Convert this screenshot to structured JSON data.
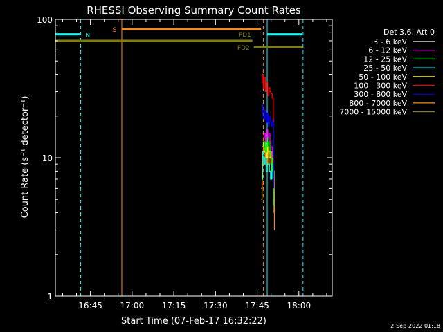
{
  "chart_data": {
    "type": "line",
    "title": "RHESSI Observing Summary Count Rates",
    "xlabel": "Start Time (07-Feb-17 16:32:22)",
    "ylabel": "Count Rate (s⁻¹ detector⁻¹)",
    "yscale": "log",
    "ylim": [
      1,
      100
    ],
    "xlim_minutes_of_day": [
      992.4,
      1092.0
    ],
    "x_ticks": [
      {
        "label": "16:45",
        "minute": 1005
      },
      {
        "label": "17:00",
        "minute": 1020
      },
      {
        "label": "17:15",
        "minute": 1035
      },
      {
        "label": "17:30",
        "minute": 1050
      },
      {
        "label": "17:45",
        "minute": 1065
      },
      {
        "label": "18:00",
        "minute": 1080
      }
    ],
    "y_ticks": [
      {
        "label": "1",
        "value": 1
      },
      {
        "label": "10",
        "value": 10
      },
      {
        "label": "100",
        "value": 100
      }
    ],
    "legend": {
      "header": "Det 3,6, Att 0",
      "placement": "right"
    },
    "series": [
      {
        "name": "3 - 6 keV",
        "color": "#ffffff",
        "values": []
      },
      {
        "name": "6 - 12 keV",
        "color": "#ff00ff",
        "x": [
          1067.2,
          1067.6,
          1068.0,
          1068.4,
          1068.8,
          1069.2,
          1069.6,
          1070.0,
          1070.4
        ],
        "values": [
          14,
          15,
          13,
          16,
          14,
          15,
          13,
          12,
          10
        ]
      },
      {
        "name": "12 - 25 keV",
        "color": "#00ff00",
        "x": [
          1067.2,
          1067.6,
          1068.0,
          1068.4,
          1068.8,
          1069.2,
          1069.6,
          1070.0,
          1070.4,
          1071.0
        ],
        "values": [
          12,
          13,
          11,
          14,
          12,
          13,
          11,
          10,
          8,
          4.5
        ]
      },
      {
        "name": "25 - 50 keV",
        "color": "#00ffff",
        "x": [
          1066.6,
          1067.0,
          1067.4,
          1067.8,
          1068.2,
          1068.6,
          1069.0,
          1069.4,
          1069.8,
          1070.2,
          1070.6
        ],
        "values": [
          7,
          11,
          9,
          10,
          8,
          9,
          9,
          8,
          7,
          9,
          7
        ]
      },
      {
        "name": "50 - 100 keV",
        "color": "#ffff00",
        "x": [
          1066.8,
          1067.2,
          1067.6,
          1068.0,
          1068.4,
          1068.8,
          1069.2,
          1069.6,
          1070.0,
          1070.4
        ],
        "values": [
          12,
          13,
          11,
          12,
          10,
          12,
          11,
          10,
          11,
          9
        ]
      },
      {
        "name": "100 - 300 keV",
        "color": "#ff0000",
        "x": [
          1066.5,
          1066.8,
          1067.2,
          1067.6,
          1068.0,
          1068.4,
          1068.8,
          1069.2,
          1069.6,
          1070.0,
          1070.4,
          1070.8
        ],
        "values": [
          35,
          40,
          32,
          38,
          30,
          35,
          28,
          32,
          30,
          29,
          27,
          18
        ]
      },
      {
        "name": "300 - 800 keV",
        "color": "#0000ff",
        "x": [
          1066.6,
          1067.0,
          1067.4,
          1067.8,
          1068.2,
          1068.6,
          1069.0,
          1069.4,
          1069.8,
          1070.2,
          1070.6,
          1071.0
        ],
        "values": [
          20,
          24,
          19,
          22,
          18,
          21,
          17,
          20,
          18,
          17,
          19,
          6
        ]
      },
      {
        "name": "800 - 7000 keV",
        "color": "#ff8c00",
        "x": [
          1066.4,
          1066.8,
          1067.2,
          1067.6,
          1068.0,
          1068.4,
          1068.8,
          1069.2,
          1069.6,
          1070.0,
          1070.4,
          1070.8,
          1071.2
        ],
        "values": [
          6,
          11,
          12,
          10,
          11,
          9,
          12,
          10,
          11,
          9,
          10,
          8,
          3
        ]
      },
      {
        "name": "7000 - 15000 keV",
        "color": "#808000",
        "x": [
          1066.4,
          1066.8,
          1067.2,
          1067.6,
          1068.0,
          1068.4,
          1068.8,
          1069.2,
          1069.6,
          1070.0,
          1070.4,
          1070.8,
          1071.0
        ],
        "values": [
          5,
          9,
          10,
          9,
          10,
          8,
          11,
          9,
          10,
          8,
          9,
          7,
          4
        ]
      }
    ],
    "state_bars": [
      {
        "label": "N",
        "color": "#00ffff",
        "y_value": 78,
        "segments": [
          [
            992.4,
            1001.2
          ],
          [
            1068.7,
            1081.3
          ]
        ]
      },
      {
        "label": "S",
        "color": "#ff8c00",
        "y_value": 85,
        "segments": [
          [
            1016.4,
            1066.4
          ]
        ]
      },
      {
        "label": "FD1",
        "color": "#808000",
        "y_value": 70,
        "segments": [
          [
            992.4,
            1063.3
          ]
        ]
      },
      {
        "label": "FD2",
        "color": "#808000",
        "y_value": 63,
        "segments": [
          [
            1063.8,
            1081.4
          ]
        ]
      }
    ],
    "vertical_lines": [
      {
        "minute": 1001.5,
        "color": "#00ffff",
        "style": "dashed"
      },
      {
        "minute": 1016.3,
        "color": "#ff8c00",
        "style": "solid"
      },
      {
        "minute": 1067.2,
        "color": "#ff8c00",
        "style": "dashed"
      },
      {
        "minute": 1068.6,
        "color": "#00ffff",
        "style": "solid"
      },
      {
        "minute": 1081.5,
        "color": "#00ffff",
        "style": "dashed"
      }
    ],
    "axis_color": "#ffffff",
    "background": "#000000"
  },
  "footer": {
    "timestamp": "2-Sep-2022 01:18"
  }
}
